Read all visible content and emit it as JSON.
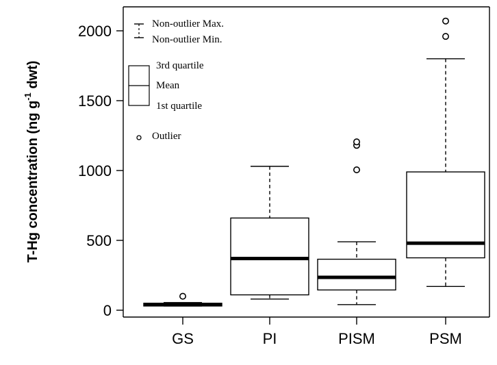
{
  "chart_data": {
    "type": "boxplot",
    "title": "",
    "ylabel": "T-Hg concentration (ng g",
    "ylabel_sup": "-1",
    "ylabel_tail": " dwt)",
    "ylim": [
      -50,
      2100
    ],
    "yticks": [
      0,
      500,
      1000,
      1500,
      2000
    ],
    "categories": [
      "GS",
      "PI",
      "PISM",
      "PSM"
    ],
    "boxes": [
      {
        "name": "GS",
        "min": 30,
        "q1": 30,
        "median": 40,
        "q3": 50,
        "max": 55,
        "outliers": [
          100
        ]
      },
      {
        "name": "PI",
        "min": 80,
        "q1": 110,
        "median": 370,
        "q3": 660,
        "max": 1030,
        "outliers": []
      },
      {
        "name": "PISM",
        "min": 40,
        "q1": 145,
        "median": 235,
        "q3": 365,
        "max": 490,
        "outliers": [
          1005,
          1180,
          1205
        ]
      },
      {
        "name": "PSM",
        "min": 170,
        "q1": 375,
        "median": 480,
        "q3": 990,
        "max": 1800,
        "outliers": [
          1960,
          2070
        ]
      }
    ],
    "legend": {
      "position": "top-left",
      "whisker_max": "Non-outlier Max.",
      "whisker_min": "Non-outlier Min.",
      "box_q3": "3rd quartile",
      "box_mid": "Mean",
      "box_q1": "1st quartile",
      "outlier": "Outlier"
    }
  }
}
